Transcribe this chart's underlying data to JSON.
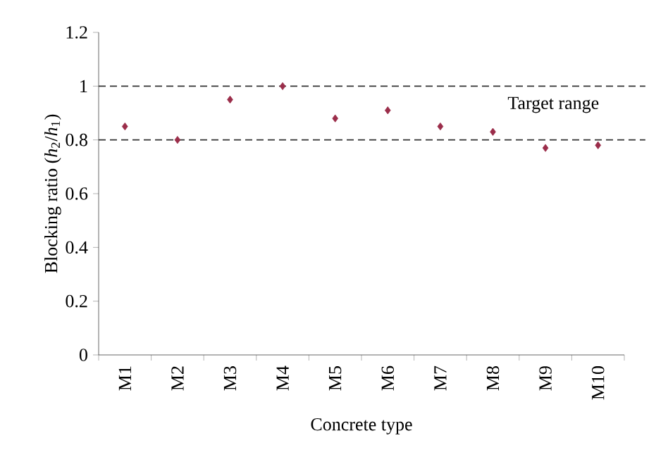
{
  "chart_data": {
    "type": "scatter",
    "xlabel": "Concrete type",
    "ylabel": "Blocking ratio (*h*$_{2}$/*h*$_{1}$)",
    "categories": [
      "M1",
      "M2",
      "M3",
      "M4",
      "M5",
      "M6",
      "M7",
      "M8",
      "M9",
      "M10"
    ],
    "values": [
      0.85,
      0.8,
      0.95,
      1.0,
      0.88,
      0.91,
      0.85,
      0.83,
      0.77,
      0.78
    ],
    "color": "#9b2d4a",
    "marker": "diamond",
    "ylim": [
      0,
      1.2
    ],
    "yticks": [
      0,
      0.2,
      0.4,
      0.6,
      0.8,
      1,
      1.2
    ],
    "ref_lines": [
      {
        "axis": "y",
        "value": 1,
        "line_style": "dashed"
      },
      {
        "axis": "y",
        "value": 0.8,
        "line_style": "dashed"
      }
    ],
    "annotations": [
      "Target range"
    ]
  }
}
